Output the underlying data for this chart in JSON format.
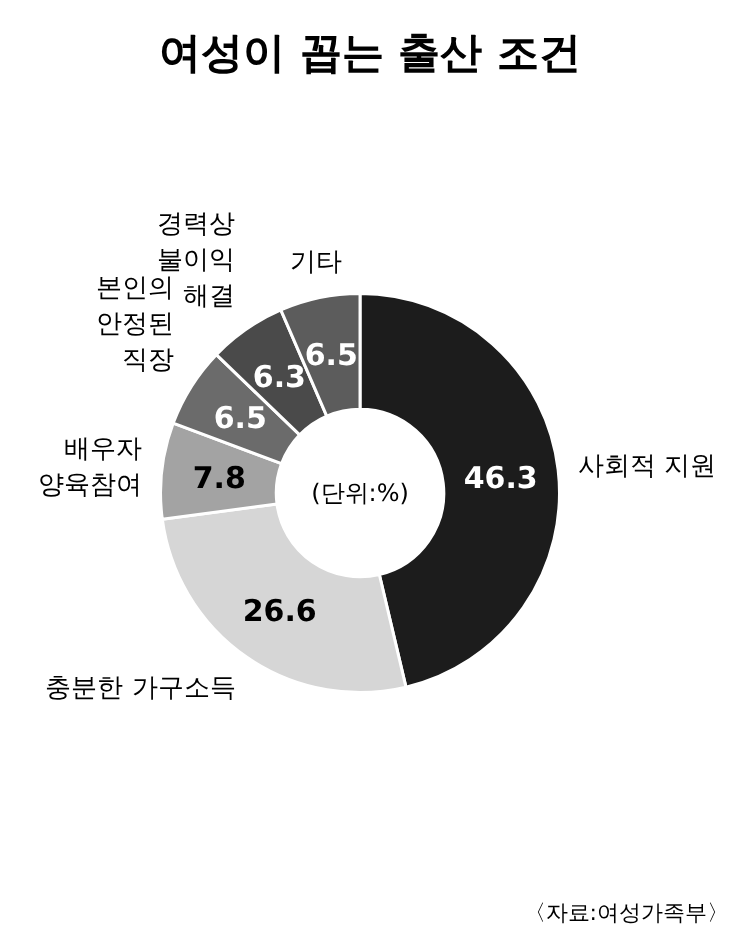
{
  "chart_data": {
    "type": "donut",
    "title": "여성이 꼽는 출산 조건",
    "categories": [
      "사회적 지원",
      "충분한 가구소득",
      "배우자\n양육참여",
      "본인의\n안정된\n직장",
      "경력상\n불이익\n해결",
      "기타"
    ],
    "values": [
      46.3,
      26.6,
      7.8,
      6.5,
      6.3,
      6.5
    ],
    "colors": [
      "#1c1c1c",
      "#d6d6d6",
      "#a3a3a3",
      "#6b6b6b",
      "#4a4a4a",
      "#5c5c5c"
    ],
    "data_labels": true,
    "annotations": [
      "(단위:%)",
      "〈자료:여성가족부〉"
    ]
  }
}
